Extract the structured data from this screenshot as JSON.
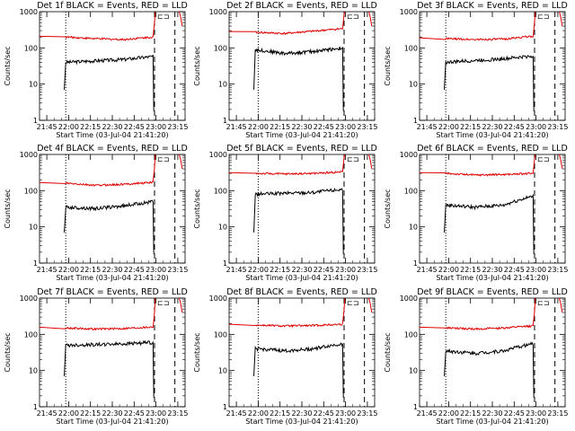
{
  "figure": {
    "background": "#ffffff",
    "events_color": "#000000",
    "lld_color": "#e00000"
  },
  "chart_data": [
    {
      "type": "line",
      "title": "Det 1f BLACK = Events, RED = LLD",
      "xlabel": "Start Time (03-Jul-04 21:41:20)",
      "ylabel": "Counts/sec",
      "yscale": "log",
      "ylim": [
        1,
        1000
      ],
      "x_ticks": [
        "21:45",
        "22:00",
        "22:15",
        "22:30",
        "22:45",
        "23:00",
        "23:15"
      ],
      "y_ticks": [
        "1",
        "10",
        "100",
        "1000"
      ],
      "series": [
        {
          "name": "Events",
          "color": "#000000",
          "levels": [
            40,
            44,
            48,
            58
          ]
        },
        {
          "name": "LLD",
          "color": "#e00000",
          "levels": [
            200,
            180,
            170,
            200
          ]
        }
      ],
      "vlines": [
        {
          "time": "21:58",
          "style": "dotted"
        },
        {
          "time": "22:59",
          "style": "dashed"
        },
        {
          "time": "23:13",
          "style": "dashed"
        }
      ]
    },
    {
      "type": "line",
      "title": "Det 2f BLACK = Events, RED = LLD",
      "xlabel": "Start Time (03-Jul-04 21:41:20)",
      "ylabel": "Counts/sec",
      "yscale": "log",
      "ylim": [
        1,
        1000
      ],
      "x_ticks": [
        "21:45",
        "22:00",
        "22:15",
        "22:30",
        "22:45",
        "23:00",
        "23:15"
      ],
      "y_ticks": [
        "1",
        "10",
        "100",
        "1000"
      ],
      "series": [
        {
          "name": "Events",
          "color": "#000000",
          "levels": [
            90,
            70,
            80,
            100
          ]
        },
        {
          "name": "LLD",
          "color": "#e00000",
          "levels": [
            270,
            250,
            290,
            340
          ]
        }
      ],
      "vlines": [
        {
          "time": "22:00",
          "style": "dotted"
        },
        {
          "time": "22:59",
          "style": "dashed"
        },
        {
          "time": "23:13",
          "style": "dashed"
        }
      ]
    },
    {
      "type": "line",
      "title": "Det 3f BLACK = Events, RED = LLD",
      "xlabel": "Start Time (03-Jul-04 21:41:20)",
      "ylabel": "Counts/sec",
      "yscale": "log",
      "ylim": [
        1,
        1000
      ],
      "x_ticks": [
        "21:45",
        "22:00",
        "22:15",
        "22:30",
        "22:45",
        "23:00",
        "23:15"
      ],
      "y_ticks": [
        "1",
        "10",
        "100",
        "1000"
      ],
      "series": [
        {
          "name": "Events",
          "color": "#000000",
          "levels": [
            40,
            45,
            50,
            60
          ]
        },
        {
          "name": "LLD",
          "color": "#e00000",
          "levels": [
            180,
            170,
            175,
            210
          ]
        }
      ],
      "vlines": [
        {
          "time": "21:58",
          "style": "dotted"
        },
        {
          "time": "22:59",
          "style": "dashed"
        },
        {
          "time": "23:13",
          "style": "dashed"
        }
      ]
    },
    {
      "type": "line",
      "title": "Det 4f BLACK = Events, RED = LLD",
      "xlabel": "Start Time (03-Jul-04 21:41:20)",
      "ylabel": "Counts/sec",
      "yscale": "log",
      "ylim": [
        1,
        1000
      ],
      "x_ticks": [
        "21:45",
        "22:00",
        "22:15",
        "22:30",
        "22:45",
        "23:00",
        "23:15"
      ],
      "y_ticks": [
        "1",
        "10",
        "100",
        "1000"
      ],
      "series": [
        {
          "name": "Events",
          "color": "#000000",
          "levels": [
            35,
            32,
            38,
            50
          ]
        },
        {
          "name": "LLD",
          "color": "#e00000",
          "levels": [
            160,
            140,
            150,
            170
          ]
        }
      ],
      "vlines": [
        {
          "time": "21:58",
          "style": "dotted"
        },
        {
          "time": "22:59",
          "style": "dashed"
        },
        {
          "time": "23:13",
          "style": "dashed"
        }
      ]
    },
    {
      "type": "line",
      "title": "Det 5f BLACK = Events, RED = LLD",
      "xlabel": "Start Time (03-Jul-04 21:41:20)",
      "ylabel": "Counts/sec",
      "yscale": "log",
      "ylim": [
        1,
        1000
      ],
      "x_ticks": [
        "21:45",
        "22:00",
        "22:15",
        "22:30",
        "22:45",
        "23:00",
        "23:15"
      ],
      "y_ticks": [
        "1",
        "10",
        "100",
        "1000"
      ],
      "series": [
        {
          "name": "Events",
          "color": "#000000",
          "levels": [
            80,
            85,
            90,
            110
          ]
        },
        {
          "name": "LLD",
          "color": "#e00000",
          "levels": [
            300,
            290,
            300,
            330
          ]
        }
      ],
      "vlines": [
        {
          "time": "22:00",
          "style": "dotted"
        },
        {
          "time": "22:59",
          "style": "dashed"
        },
        {
          "time": "23:13",
          "style": "dashed"
        }
      ]
    },
    {
      "type": "line",
      "title": "Det 6f BLACK = Events, RED = LLD",
      "xlabel": "Start Time (03-Jul-04 21:41:20)",
      "ylabel": "Counts/sec",
      "yscale": "log",
      "ylim": [
        1,
        1000
      ],
      "x_ticks": [
        "21:45",
        "22:00",
        "22:15",
        "22:30",
        "22:45",
        "23:00",
        "23:15"
      ],
      "y_ticks": [
        "1",
        "10",
        "100",
        "1000"
      ],
      "series": [
        {
          "name": "Events",
          "color": "#000000",
          "levels": [
            40,
            35,
            40,
            70
          ]
        },
        {
          "name": "LLD",
          "color": "#e00000",
          "levels": [
            300,
            270,
            280,
            300
          ]
        }
      ],
      "vlines": [
        {
          "time": "21:58",
          "style": "dotted"
        },
        {
          "time": "22:59",
          "style": "dashed"
        },
        {
          "time": "23:13",
          "style": "dashed"
        }
      ]
    },
    {
      "type": "line",
      "title": "Det 7f BLACK = Events, RED = LLD",
      "xlabel": "Start Time (03-Jul-04 21:41:20)",
      "ylabel": "Counts/sec",
      "yscale": "log",
      "ylim": [
        1,
        1000
      ],
      "x_ticks": [
        "21:45",
        "22:00",
        "22:15",
        "22:30",
        "22:45",
        "23:00",
        "23:15"
      ],
      "y_ticks": [
        "1",
        "10",
        "100",
        "1000"
      ],
      "series": [
        {
          "name": "Events",
          "color": "#000000",
          "levels": [
            50,
            52,
            55,
            60
          ]
        },
        {
          "name": "LLD",
          "color": "#e00000",
          "levels": [
            150,
            140,
            145,
            160
          ]
        }
      ],
      "vlines": [
        {
          "time": "21:58",
          "style": "dotted"
        },
        {
          "time": "22:59",
          "style": "dashed"
        },
        {
          "time": "23:13",
          "style": "dashed"
        }
      ]
    },
    {
      "type": "line",
      "title": "Det 8f BLACK = Events, RED = LLD",
      "xlabel": "Start Time (03-Jul-04 21:41:20)",
      "ylabel": "Counts/sec",
      "yscale": "log",
      "ylim": [
        1,
        1000
      ],
      "x_ticks": [
        "21:45",
        "22:00",
        "22:15",
        "22:30",
        "22:45",
        "23:00",
        "23:15"
      ],
      "y_ticks": [
        "1",
        "10",
        "100",
        "1000"
      ],
      "series": [
        {
          "name": "Events",
          "color": "#000000",
          "levels": [
            40,
            35,
            40,
            55
          ]
        },
        {
          "name": "LLD",
          "color": "#e00000",
          "levels": [
            180,
            170,
            175,
            190
          ]
        }
      ],
      "vlines": [
        {
          "time": "22:00",
          "style": "dotted"
        },
        {
          "time": "22:59",
          "style": "dashed"
        },
        {
          "time": "23:13",
          "style": "dashed"
        }
      ]
    },
    {
      "type": "line",
      "title": "Det 9f BLACK = Events, RED = LLD",
      "xlabel": "Start Time (03-Jul-04 21:41:20)",
      "ylabel": "Counts/sec",
      "yscale": "log",
      "ylim": [
        1,
        1000
      ],
      "x_ticks": [
        "21:45",
        "22:00",
        "22:15",
        "22:30",
        "22:45",
        "23:00",
        "23:15"
      ],
      "y_ticks": [
        "1",
        "10",
        "100",
        "1000"
      ],
      "series": [
        {
          "name": "Events",
          "color": "#000000",
          "levels": [
            35,
            30,
            35,
            55
          ]
        },
        {
          "name": "LLD",
          "color": "#e00000",
          "levels": [
            150,
            140,
            150,
            170
          ]
        }
      ],
      "vlines": [
        {
          "time": "21:58",
          "style": "dotted"
        },
        {
          "time": "22:59",
          "style": "dashed"
        },
        {
          "time": "23:13",
          "style": "dashed"
        }
      ]
    }
  ]
}
